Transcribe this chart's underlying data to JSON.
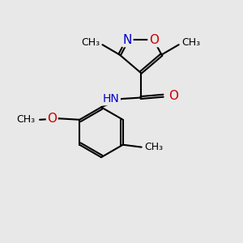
{
  "bg_color": "#e8e8e8",
  "bond_color": "#000000",
  "bond_width": 1.5,
  "atom_colors": {
    "N": "#0000cc",
    "O": "#cc0000",
    "C": "#000000",
    "H": "#5a9e9e"
  },
  "font_size": 10,
  "fig_size": [
    3.0,
    3.0
  ],
  "dpi": 100,
  "xlim": [
    0,
    10
  ],
  "ylim": [
    0,
    10
  ]
}
